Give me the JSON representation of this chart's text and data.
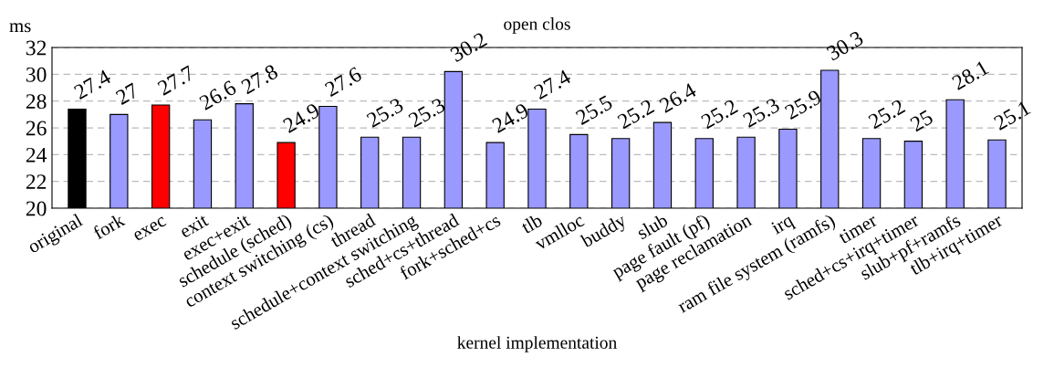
{
  "chart_data": {
    "type": "bar",
    "title": "open clos",
    "xlabel": "kernel implementation",
    "ylabel": "ms",
    "categories": [
      "original",
      "fork",
      "exec",
      "exit",
      "exec+exit",
      "schedule (sched)",
      "context switching (cs)",
      "thread",
      "schedule+context switching",
      "sched+cs+thread",
      "fork+sched+cs",
      "tlb",
      "vmlloc",
      "buddy",
      "slub",
      "page fault (pf)",
      "page reclamation",
      "irq",
      "ram file system (ramfs)",
      "timer",
      "sched+cs+irq+timer",
      "slub+pf+ramfs",
      "tlb+irq+timer"
    ],
    "values": [
      27.4,
      27,
      27.7,
      26.6,
      27.8,
      24.9,
      27.6,
      25.3,
      25.3,
      30.2,
      24.9,
      27.4,
      25.5,
      25.2,
      26.4,
      25.2,
      25.3,
      25.9,
      30.3,
      25.2,
      25,
      28.1,
      25.1
    ],
    "colors": [
      "#000000",
      "#9999ff",
      "#ff0000",
      "#9999ff",
      "#9999ff",
      "#ff0000",
      "#9999ff",
      "#9999ff",
      "#9999ff",
      "#9999ff",
      "#9999ff",
      "#9999ff",
      "#9999ff",
      "#9999ff",
      "#9999ff",
      "#9999ff",
      "#9999ff",
      "#9999ff",
      "#9999ff",
      "#9999ff",
      "#9999ff",
      "#9999ff",
      "#9999ff"
    ],
    "ylim": [
      20,
      32
    ],
    "yticks": [
      20,
      22,
      24,
      26,
      28,
      30,
      32
    ],
    "grid": "y",
    "data_labels": true
  }
}
